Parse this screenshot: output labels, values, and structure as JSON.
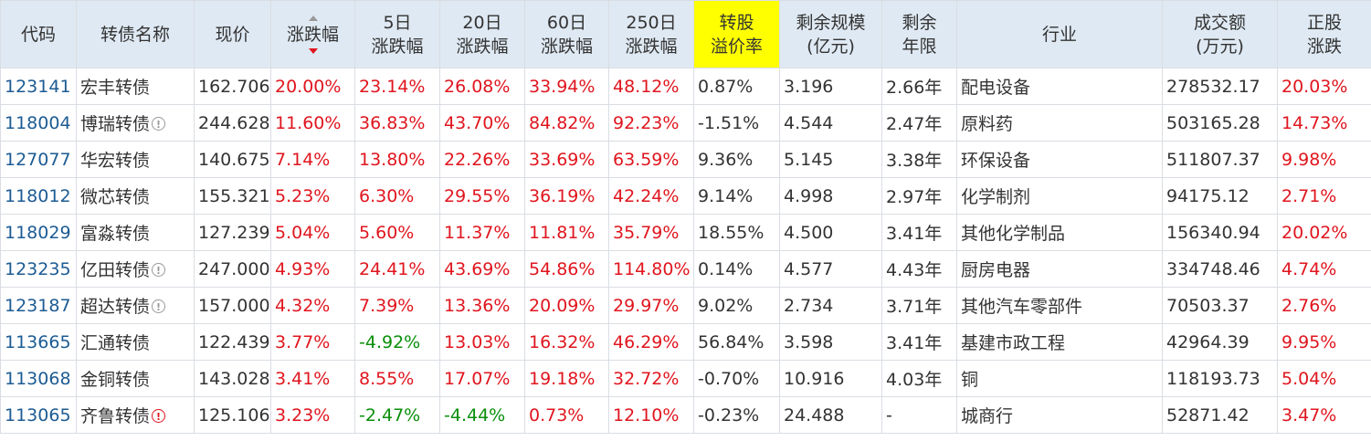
{
  "headers": [
    {
      "key": "code",
      "lines": [
        "代码"
      ]
    },
    {
      "key": "name",
      "lines": [
        "转债名称"
      ]
    },
    {
      "key": "price",
      "lines": [
        "现价"
      ]
    },
    {
      "key": "change",
      "lines": [
        "涨跌幅"
      ],
      "sort": "desc"
    },
    {
      "key": "d5",
      "lines": [
        "5日",
        "涨跌幅"
      ]
    },
    {
      "key": "d20",
      "lines": [
        "20日",
        "涨跌幅"
      ]
    },
    {
      "key": "d60",
      "lines": [
        "60日",
        "涨跌幅"
      ]
    },
    {
      "key": "d250",
      "lines": [
        "250日",
        "涨跌幅"
      ]
    },
    {
      "key": "premium",
      "lines": [
        "转股",
        "溢价率"
      ],
      "highlight": true
    },
    {
      "key": "scale",
      "lines": [
        "剩余规模",
        "(亿元)"
      ]
    },
    {
      "key": "years",
      "lines": [
        "剩余",
        "年限"
      ]
    },
    {
      "key": "industry",
      "lines": [
        "行业"
      ]
    },
    {
      "key": "volume",
      "lines": [
        "成交额",
        "(万元)"
      ]
    },
    {
      "key": "stock_change",
      "lines": [
        "正股",
        "涨跌"
      ]
    }
  ],
  "colors": {
    "up": "#e0151e",
    "down": "#0a8f0a",
    "code": "#1c5b93",
    "highlight": "#ffff00",
    "header_bg": "#dfe9f3"
  },
  "rows": [
    {
      "code": "123141",
      "name": "宏丰转债",
      "icon": "",
      "price": "162.706",
      "change": "20.00%",
      "d5": "23.14%",
      "d20": "26.08%",
      "d60": "33.94%",
      "d250": "48.12%",
      "premium": "0.87%",
      "scale": "3.196",
      "years": "2.66年",
      "industry": "配电设备",
      "volume": "278532.17",
      "stock_change": "20.03%"
    },
    {
      "code": "118004",
      "name": "博瑞转债",
      "icon": "info-circle-icon",
      "price": "244.628",
      "change": "11.60%",
      "d5": "36.83%",
      "d20": "43.70%",
      "d60": "84.82%",
      "d250": "92.23%",
      "premium": "-1.51%",
      "scale": "4.544",
      "years": "2.47年",
      "industry": "原料药",
      "volume": "503165.28",
      "stock_change": "14.73%"
    },
    {
      "code": "127077",
      "name": "华宏转债",
      "icon": "",
      "price": "140.675",
      "change": "7.14%",
      "d5": "13.80%",
      "d20": "22.26%",
      "d60": "33.69%",
      "d250": "63.59%",
      "premium": "9.36%",
      "scale": "5.145",
      "years": "3.38年",
      "industry": "环保设备",
      "volume": "511807.37",
      "stock_change": "9.98%"
    },
    {
      "code": "118012",
      "name": "微芯转债",
      "icon": "",
      "price": "155.321",
      "change": "5.23%",
      "d5": "6.30%",
      "d20": "29.55%",
      "d60": "36.19%",
      "d250": "42.24%",
      "premium": "9.14%",
      "scale": "4.998",
      "years": "2.97年",
      "industry": "化学制剂",
      "volume": "94175.12",
      "stock_change": "2.71%"
    },
    {
      "code": "118029",
      "name": "富淼转债",
      "icon": "",
      "price": "127.239",
      "change": "5.04%",
      "d5": "5.60%",
      "d20": "11.37%",
      "d60": "11.81%",
      "d250": "35.79%",
      "premium": "18.55%",
      "scale": "4.500",
      "years": "3.41年",
      "industry": "其他化学制品",
      "volume": "156340.94",
      "stock_change": "20.02%"
    },
    {
      "code": "123235",
      "name": "亿田转债",
      "icon": "info-circle-icon",
      "price": "247.000",
      "change": "4.93%",
      "d5": "24.41%",
      "d20": "43.69%",
      "d60": "54.86%",
      "d250": "114.80%",
      "premium": "0.14%",
      "scale": "4.577",
      "years": "4.43年",
      "industry": "厨房电器",
      "volume": "334748.46",
      "stock_change": "4.74%"
    },
    {
      "code": "123187",
      "name": "超达转债",
      "icon": "info-circle-icon",
      "price": "157.000",
      "change": "4.32%",
      "d5": "7.39%",
      "d20": "13.36%",
      "d60": "20.09%",
      "d250": "29.97%",
      "premium": "9.02%",
      "scale": "2.734",
      "years": "3.71年",
      "industry": "其他汽车零部件",
      "volume": "70503.37",
      "stock_change": "2.76%"
    },
    {
      "code": "113665",
      "name": "汇通转债",
      "icon": "",
      "price": "122.439",
      "change": "3.77%",
      "d5": "-4.92%",
      "d20": "13.03%",
      "d60": "16.32%",
      "d250": "46.29%",
      "premium": "56.84%",
      "scale": "3.598",
      "years": "3.41年",
      "industry": "基建市政工程",
      "volume": "42964.39",
      "stock_change": "9.95%"
    },
    {
      "code": "113068",
      "name": "金铜转债",
      "icon": "",
      "price": "143.028",
      "change": "3.41%",
      "d5": "8.55%",
      "d20": "17.07%",
      "d60": "19.18%",
      "d250": "32.72%",
      "premium": "-0.70%",
      "scale": "10.916",
      "years": "4.03年",
      "industry": "铜",
      "volume": "118193.73",
      "stock_change": "5.04%"
    },
    {
      "code": "113065",
      "name": "齐鲁转债",
      "icon": "alert-circle-red-icon",
      "price": "125.106",
      "change": "3.23%",
      "d5": "-2.47%",
      "d20": "-4.44%",
      "d60": "0.73%",
      "d250": "12.10%",
      "premium": "-0.23%",
      "scale": "24.488",
      "years": "-",
      "industry": "城商行",
      "volume": "52871.42",
      "stock_change": "3.47%"
    }
  ]
}
